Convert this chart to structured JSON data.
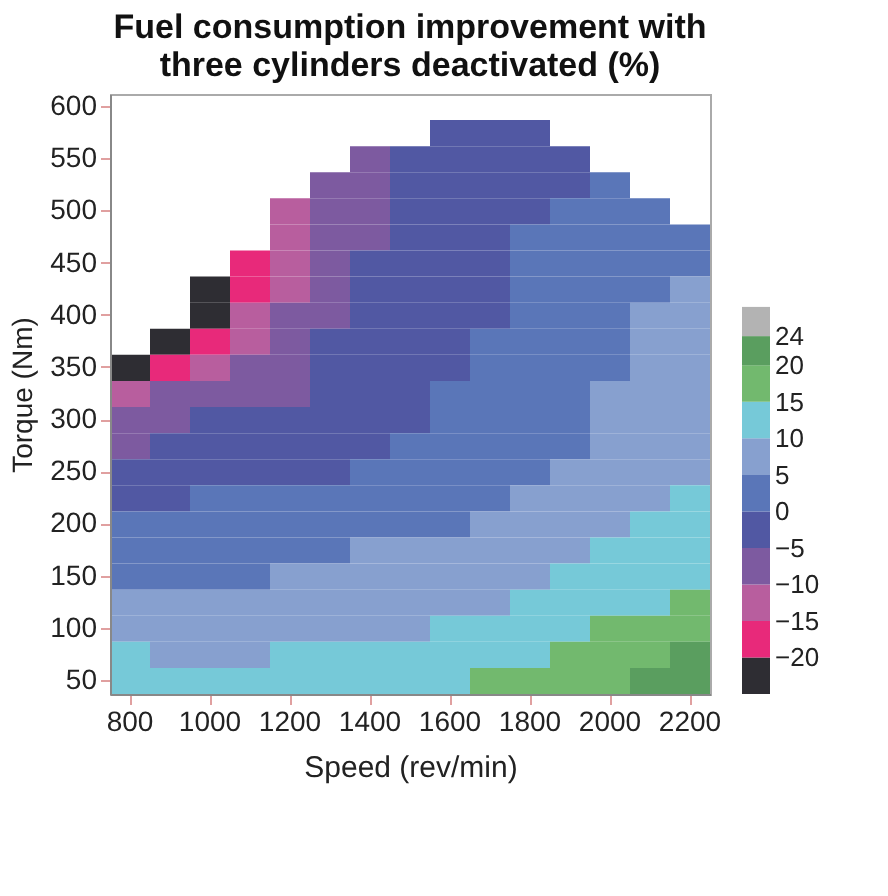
{
  "chart_data": {
    "type": "heatmap",
    "title": "Fuel consumption improvement with three cylinders deactivated (%)",
    "xlabel": "Speed (rev/min)",
    "ylabel": "Torque (Nm)",
    "categories": [
      "800",
      null,
      "1000",
      null,
      "1200",
      null,
      "1400",
      null,
      "1600",
      null,
      "1800",
      null,
      "2000",
      null,
      "2200"
    ],
    "y_categories": [
      "600",
      null,
      "550",
      null,
      "500",
      null,
      "450",
      null,
      "400",
      null,
      "350",
      null,
      "300",
      null,
      "250",
      null,
      "200",
      null,
      "150",
      null,
      "100",
      null,
      "50"
    ],
    "cells": [
      [
        null,
        null,
        null,
        null,
        null,
        null,
        null,
        null,
        null,
        null,
        null,
        null,
        null,
        null,
        null
      ],
      [
        null,
        null,
        null,
        null,
        null,
        null,
        null,
        null,
        -2.5,
        -2.5,
        -2.5,
        null,
        null,
        null,
        null
      ],
      [
        null,
        null,
        null,
        null,
        null,
        null,
        -7.5,
        -2.5,
        -2.5,
        -2.5,
        -2.5,
        -2.5,
        null,
        null,
        null
      ],
      [
        null,
        null,
        null,
        null,
        null,
        -7.5,
        -7.5,
        -2.5,
        -2.5,
        -2.5,
        -2.5,
        -2.5,
        2.5,
        null,
        null
      ],
      [
        null,
        null,
        null,
        null,
        -12.5,
        -7.5,
        -7.5,
        -2.5,
        -2.5,
        -2.5,
        -2.5,
        2.5,
        2.5,
        2.5,
        null
      ],
      [
        null,
        null,
        null,
        null,
        -12.5,
        -7.5,
        -7.5,
        -2.5,
        -2.5,
        -2.5,
        2.5,
        2.5,
        2.5,
        2.5,
        2.5
      ],
      [
        null,
        null,
        null,
        -17.5,
        -12.5,
        -7.5,
        -2.5,
        -2.5,
        -2.5,
        -2.5,
        2.5,
        2.5,
        2.5,
        2.5,
        2.5
      ],
      [
        null,
        null,
        -22.5,
        -17.5,
        -12.5,
        -7.5,
        -2.5,
        -2.5,
        -2.5,
        -2.5,
        2.5,
        2.5,
        2.5,
        2.5,
        7.5
      ],
      [
        null,
        null,
        -22.5,
        -12.5,
        -7.5,
        -7.5,
        -2.5,
        -2.5,
        -2.5,
        -2.5,
        2.5,
        2.5,
        2.5,
        7.5,
        7.5
      ],
      [
        null,
        -22.5,
        -17.5,
        -12.5,
        -7.5,
        -2.5,
        -2.5,
        -2.5,
        -2.5,
        2.5,
        2.5,
        2.5,
        2.5,
        7.5,
        7.5
      ],
      [
        -22.5,
        -17.5,
        -12.5,
        -7.5,
        -7.5,
        -2.5,
        -2.5,
        -2.5,
        -2.5,
        2.5,
        2.5,
        2.5,
        2.5,
        7.5,
        7.5
      ],
      [
        -12.5,
        -7.5,
        -7.5,
        -7.5,
        -7.5,
        -2.5,
        -2.5,
        -2.5,
        2.5,
        2.5,
        2.5,
        2.5,
        7.5,
        7.5,
        7.5
      ],
      [
        -7.5,
        -7.5,
        -2.5,
        -2.5,
        -2.5,
        -2.5,
        -2.5,
        -2.5,
        2.5,
        2.5,
        2.5,
        2.5,
        7.5,
        7.5,
        7.5
      ],
      [
        -7.5,
        -2.5,
        -2.5,
        -2.5,
        -2.5,
        -2.5,
        -2.5,
        2.5,
        2.5,
        2.5,
        2.5,
        2.5,
        7.5,
        7.5,
        7.5
      ],
      [
        -2.5,
        -2.5,
        -2.5,
        -2.5,
        -2.5,
        -2.5,
        2.5,
        2.5,
        2.5,
        2.5,
        2.5,
        7.5,
        7.5,
        7.5,
        7.5
      ],
      [
        -2.5,
        -2.5,
        2.5,
        2.5,
        2.5,
        2.5,
        2.5,
        2.5,
        2.5,
        2.5,
        7.5,
        7.5,
        7.5,
        7.5,
        12.5
      ],
      [
        2.5,
        2.5,
        2.5,
        2.5,
        2.5,
        2.5,
        2.5,
        2.5,
        2.5,
        7.5,
        7.5,
        7.5,
        7.5,
        12.5,
        12.5
      ],
      [
        2.5,
        2.5,
        2.5,
        2.5,
        2.5,
        2.5,
        7.5,
        7.5,
        7.5,
        7.5,
        7.5,
        7.5,
        12.5,
        12.5,
        12.5
      ],
      [
        2.5,
        2.5,
        2.5,
        2.5,
        7.5,
        7.5,
        7.5,
        7.5,
        7.5,
        7.5,
        7.5,
        12.5,
        12.5,
        12.5,
        12.5
      ],
      [
        7.5,
        7.5,
        7.5,
        7.5,
        7.5,
        7.5,
        7.5,
        7.5,
        7.5,
        7.5,
        12.5,
        12.5,
        12.5,
        12.5,
        17.5
      ],
      [
        7.5,
        7.5,
        7.5,
        7.5,
        7.5,
        7.5,
        7.5,
        7.5,
        12.5,
        12.5,
        12.5,
        12.5,
        17.5,
        17.5,
        17.5
      ],
      [
        12.5,
        7.5,
        7.5,
        7.5,
        12.5,
        12.5,
        12.5,
        12.5,
        12.5,
        12.5,
        12.5,
        17.5,
        17.5,
        17.5,
        22
      ],
      [
        12.5,
        12.5,
        12.5,
        12.5,
        12.5,
        12.5,
        12.5,
        12.5,
        12.5,
        17.5,
        17.5,
        17.5,
        17.5,
        22,
        22
      ]
    ],
    "clim": [
      -25,
      28
    ],
    "cticks": [
      -20,
      -15,
      -10,
      -5,
      0,
      5,
      10,
      15,
      20,
      24
    ],
    "colors": [
      "#2e2d33",
      "#e8297a",
      "#b85e9e",
      "#7d5aa0",
      "#5158a3",
      "#5a76b8",
      "#87a0cf",
      "#76c9d8",
      "#72b96e",
      "#5a9e5f",
      "#b3b3b3"
    ],
    "grid": false
  }
}
